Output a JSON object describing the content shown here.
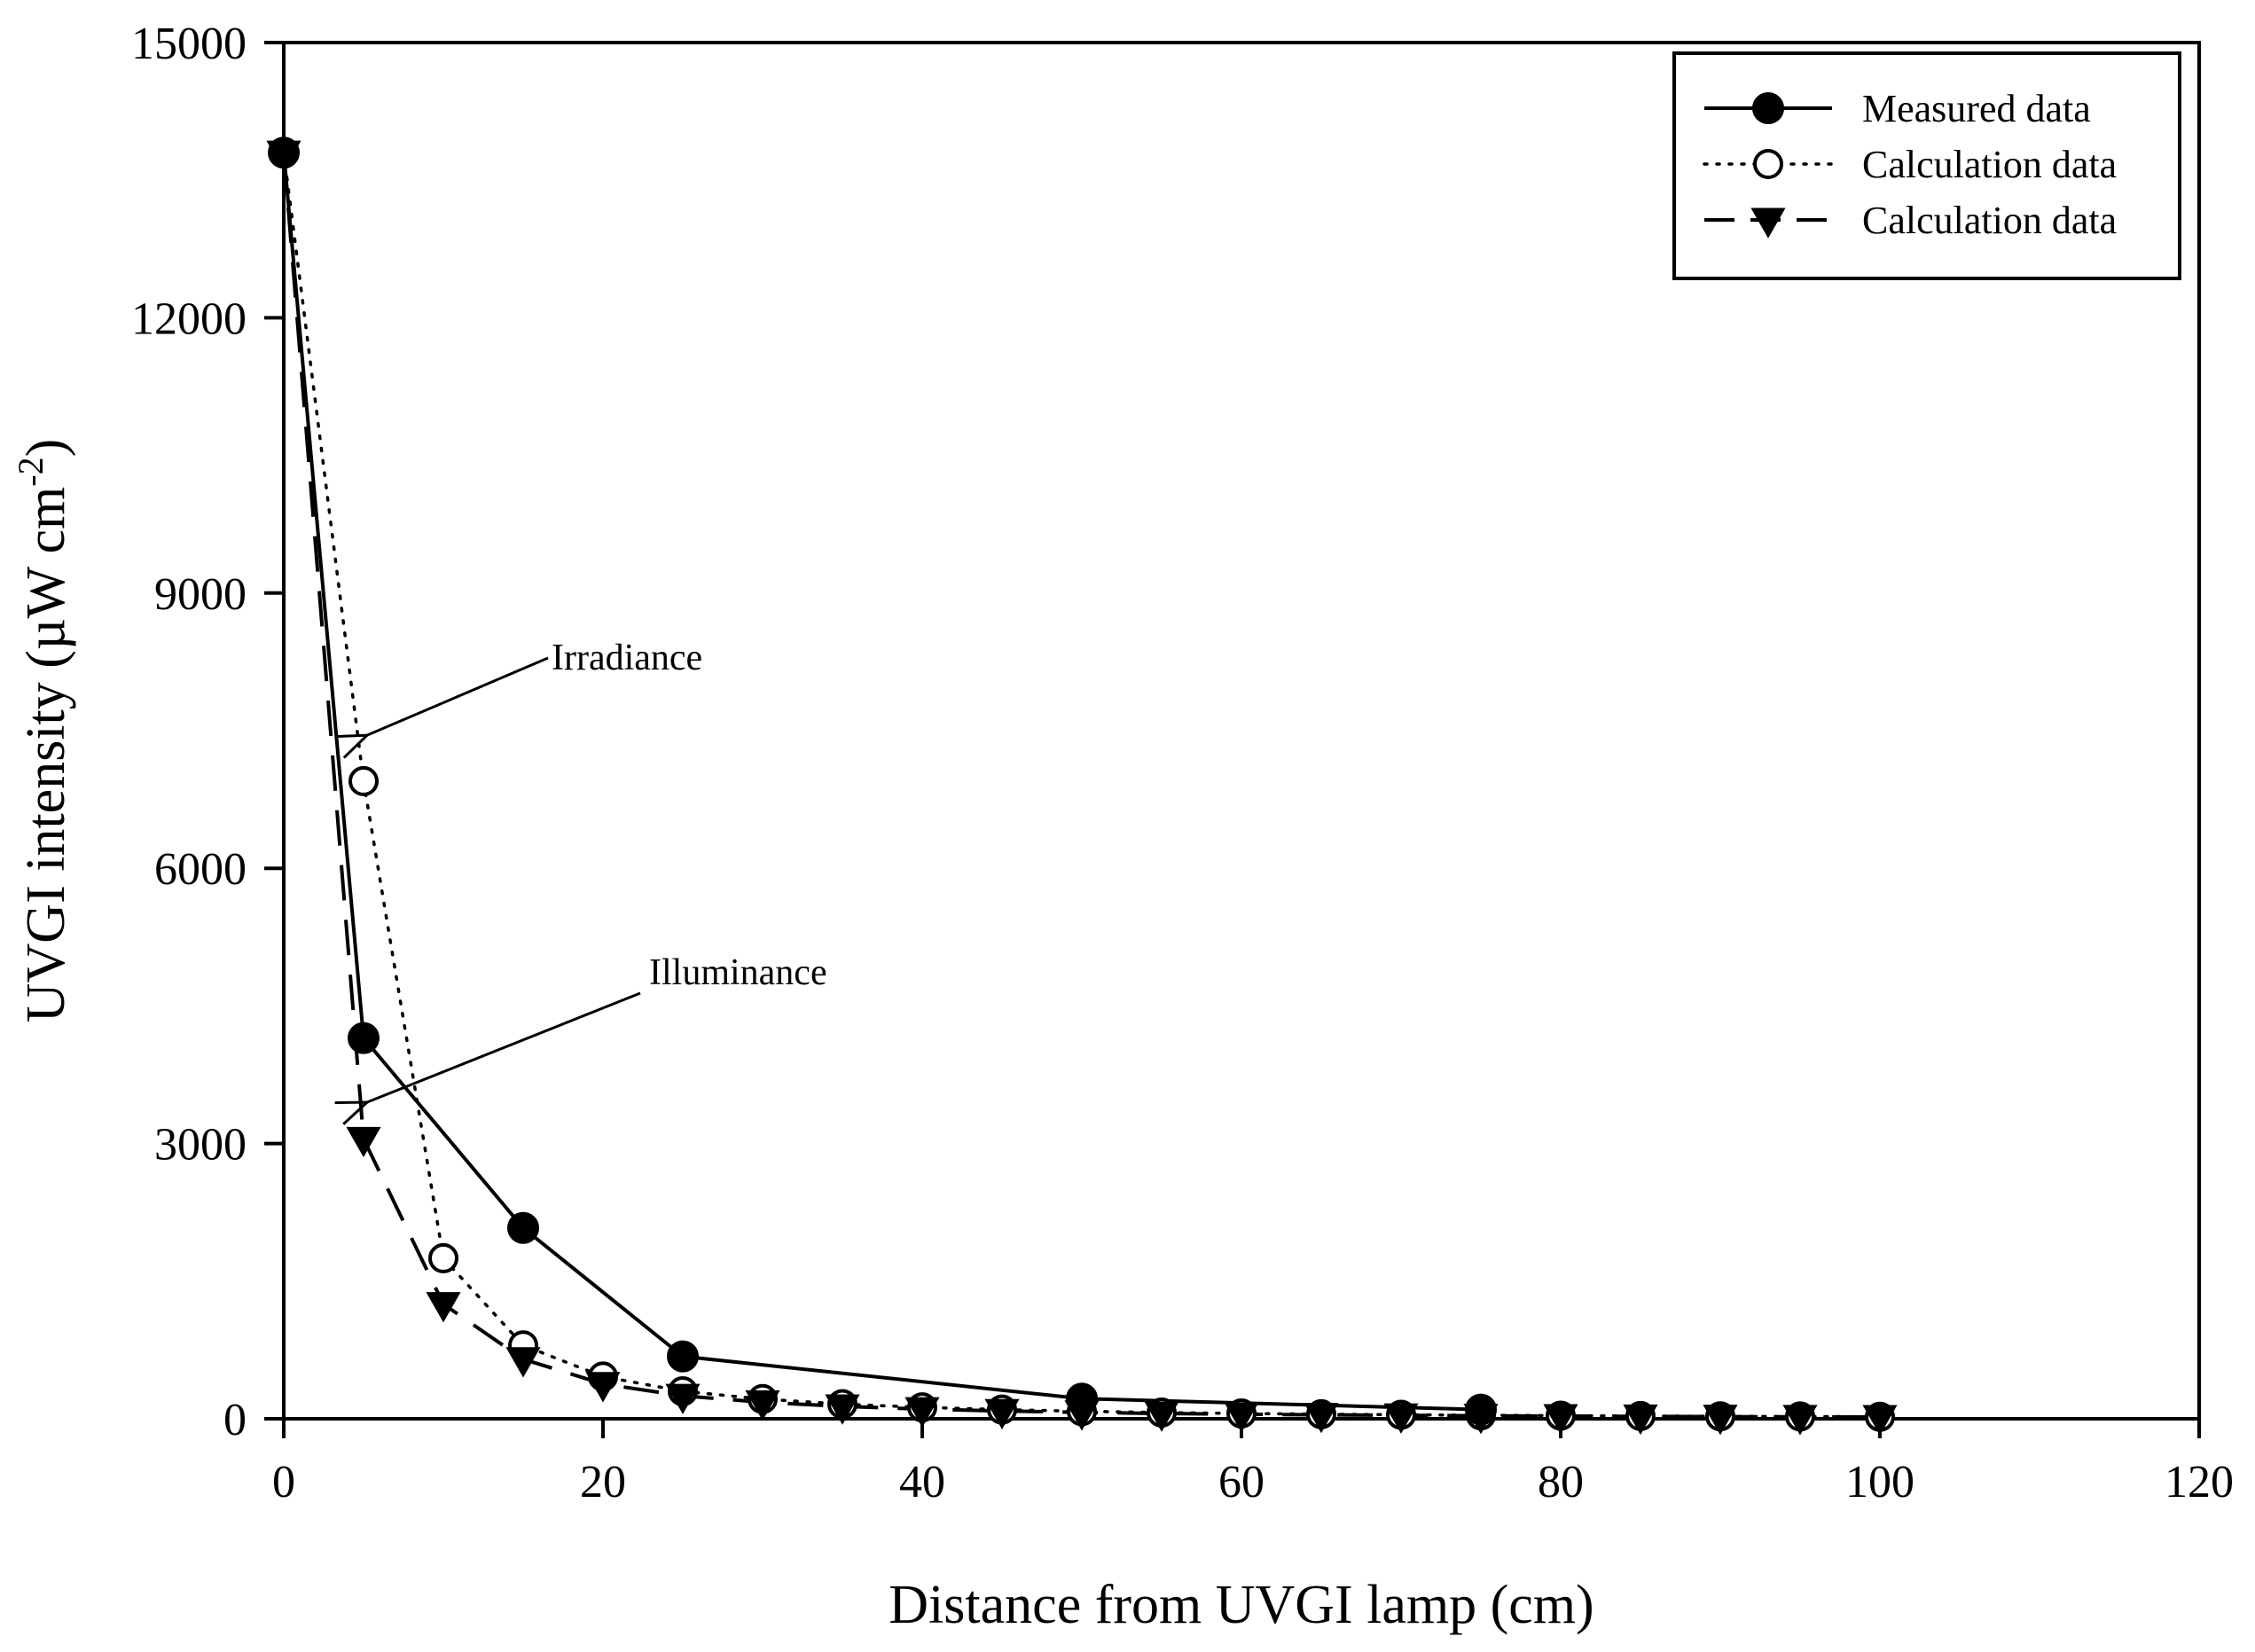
{
  "chart_data": {
    "type": "line",
    "title": "",
    "xlabel": "Distance from UVGI lamp (cm)",
    "ylabel": {
      "prefix": "UVGI intensity (µW cm",
      "superscript": "-2",
      "suffix": ")"
    },
    "xlim": [
      0,
      120
    ],
    "ylim": [
      0,
      15000
    ],
    "xticks": [
      0,
      20,
      40,
      60,
      80,
      100,
      120
    ],
    "yticks": [
      0,
      3000,
      6000,
      9000,
      12000,
      15000
    ],
    "grid": false,
    "legend_position": "top-right",
    "series": [
      {
        "name": "Measured data",
        "marker": "filled-circle",
        "line": "solid",
        "x": [
          0,
          5,
          15,
          25,
          50,
          75
        ],
        "y": [
          13800,
          4150,
          2080,
          680,
          220,
          100
        ]
      },
      {
        "name": "Calculation data",
        "marker": "open-circle",
        "line": "dotted",
        "x": [
          0,
          5,
          10,
          15,
          20,
          25,
          30,
          35,
          40,
          45,
          50,
          55,
          60,
          65,
          70,
          75,
          80,
          85,
          90,
          95,
          100
        ],
        "y": [
          13800,
          6950,
          1750,
          800,
          460,
          300,
          215,
          160,
          125,
          100,
          82,
          68,
          58,
          50,
          44,
          38,
          34,
          30,
          27,
          25,
          22
        ]
      },
      {
        "name": "Calculation data",
        "marker": "filled-triangle-down",
        "line": "dashed",
        "x": [
          0,
          5,
          10,
          15,
          20,
          25,
          30,
          35,
          40,
          45,
          50,
          55,
          60,
          65,
          70,
          75,
          80,
          85,
          90,
          95,
          100
        ],
        "y": [
          13800,
          3050,
          1250,
          650,
          380,
          250,
          180,
          135,
          105,
          85,
          70,
          58,
          50,
          43,
          38,
          33,
          29,
          26,
          23,
          21,
          19
        ]
      }
    ],
    "annotations": [
      {
        "text": "Irradiance",
        "points_to": {
          "x": 5,
          "y": 7450
        }
      },
      {
        "text": "Illuminance",
        "points_to": {
          "x": 5,
          "y": 3450
        }
      }
    ]
  }
}
